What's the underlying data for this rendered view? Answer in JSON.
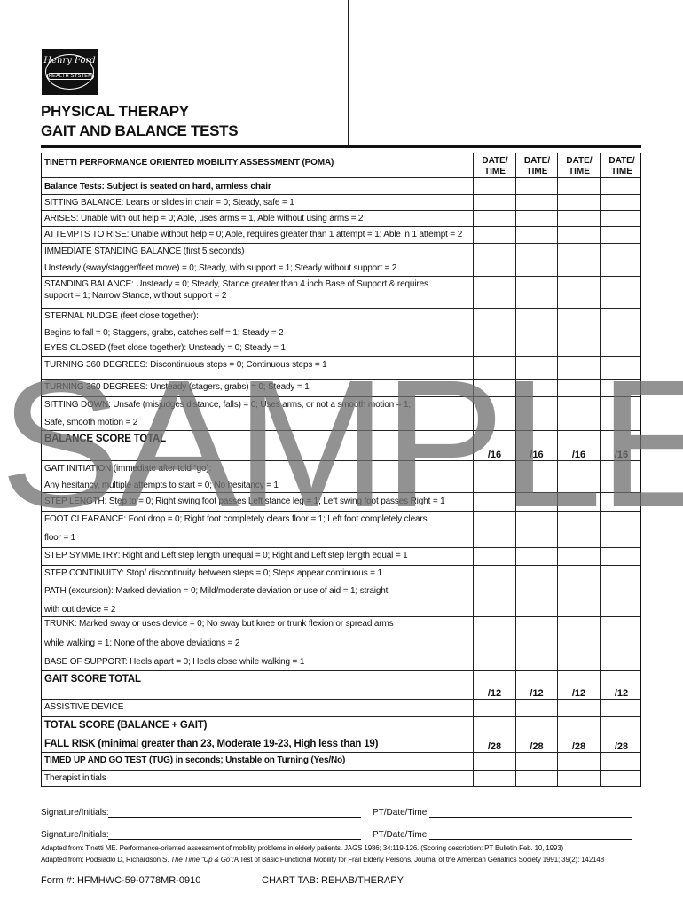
{
  "logo": {
    "script_text": "Henry Ford",
    "subtext": "HEALTH SYSTEM"
  },
  "title_line1": "PHYSICAL THERAPY",
  "title_line2": "GAIT AND BALANCE TESTS",
  "table": {
    "heading": "TINETTI PERFORMANCE ORIENTED MOBILITY ASSESSMENT (POMA)",
    "date_columns": [
      {
        "line1": "DATE/",
        "line2": "TIME"
      },
      {
        "line1": "DATE/",
        "line2": "TIME"
      },
      {
        "line1": "DATE/",
        "line2": "TIME"
      },
      {
        "line1": "DATE/",
        "line2": "TIME"
      }
    ],
    "rows": [
      {
        "style": "b",
        "lines": [
          "Balance Tests: Subject is seated on hard, armless chair"
        ]
      },
      {
        "lines": [
          "SITTING BALANCE: Leans or slides in chair = 0; Steady, safe = 1"
        ]
      },
      {
        "lines": [
          "ARISES: Unable with out help = 0; Able, uses arms = 1, Able without using arms = 2"
        ]
      },
      {
        "lines": [
          "ATTEMPTS TO RISE: Unable without help = 0; Able, requires greater than 1 attempt = 1; Able in 1 attempt = 2"
        ]
      },
      {
        "lines": [
          "IMMEDIATE STANDING BALANCE (first 5 seconds)",
          "Unsteady (sway/stagger/feet move) = 0; Steady, with support = 1; Steady without support = 2"
        ]
      },
      {
        "lines": [
          "STANDING BALANCE: Unsteady = 0; Steady, Stance greater than 4 inch Base of Support & requires",
          "support = 1; Narrow Stance, without support = 2"
        ]
      },
      {
        "lines": [
          "STERNAL NUDGE (feet close together):",
          "Begins to fall = 0; Staggers, grabs, catches self = 1; Steady = 2"
        ]
      },
      {
        "lines": [
          "EYES CLOSED (feet close together): Unsteady = 0; Steady = 1"
        ]
      },
      {
        "lines": [
          "TURNING 360 DEGREES: Discontinuous steps = 0; Continuous steps = 1"
        ]
      },
      {
        "lines": [
          "TURNING 360 DEGREES: Unsteady (stagers, grabs) = 0; Steady = 1"
        ]
      },
      {
        "lines": [
          "SITTING DOWN: Unsafe (misjudges distance, falls) = 0; Uses arms, or not a smooth motion = 1;",
          "Safe, smooth motion = 2"
        ]
      },
      {
        "style": "big",
        "lines": [
          "BALANCE SCORE TOTAL"
        ],
        "score": "/16"
      },
      {
        "lines": [
          "GAIT INITIATION (immediate after told “go):",
          "Any hesitancy, multiple attempts to start = 0; No hesitancy = 1"
        ]
      },
      {
        "lines": [
          "STEP LENGTH: Step to = 0; Right swing foot passes Left stance leg = 1; Left swing foot passes Right = 1"
        ]
      },
      {
        "lines": [
          "FOOT CLEARANCE: Foot drop = 0; Right foot completely clears floor = 1; Left foot completely clears",
          "floor = 1"
        ]
      },
      {
        "lines": [
          "STEP SYMMETRY: Right and Left step length unequal = 0; Right and Left step length equal = 1"
        ]
      },
      {
        "lines": [
          "STEP CONTINUITY: Stop/ discontinuity between steps = 0; Steps appear continuous = 1"
        ]
      },
      {
        "lines": [
          "PATH (excursion): Marked deviation = 0; Mild/moderate deviation or use of aid = 1; straight",
          "with out device = 2"
        ]
      },
      {
        "lines": [
          "TRUNK: Marked sway or uses device = 0; No sway but knee or trunk flexion or spread arms",
          "while walking = 1; None of the above deviations = 2"
        ]
      },
      {
        "lines": [
          "BASE OF SUPPORT: Heels apart = 0; Heels close while walking = 1"
        ]
      },
      {
        "style": "big",
        "lines": [
          "GAIT SCORE TOTAL"
        ],
        "score": "/12"
      },
      {
        "lines": [
          "ASSISTIVE DEVICE"
        ]
      },
      {
        "style": "big",
        "lines": [
          "TOTAL SCORE (BALANCE + GAIT)",
          "FALL RISK (minimal greater than 23, Moderate 19-23, High less than 19)"
        ],
        "score": "/28"
      },
      {
        "style": "b",
        "lines": [
          "TIMED UP AND GO TEST (TUG) in seconds; Unstable on Turning (Yes/No)"
        ]
      },
      {
        "lines": [
          "Therapist initials"
        ]
      }
    ]
  },
  "watermark": "SAMPLE",
  "signatures": [
    {
      "label": "Signature/Initials:",
      "pt_label": "PT/Date/Time"
    },
    {
      "label": "Signature/Initials:",
      "pt_label": "PT/Date/Time"
    }
  ],
  "references": {
    "ref1": "Adapted from: Tinetti ME. Performance-oriented assessment of mobility problems in elderly patients. JAGS 1986; 34:119-126. (Scoring description: PT Bulletin Feb. 10, 1993)",
    "ref2_prefix": "Adapted from: Podsiadlo D, Richardson S. ",
    "ref2_italic": "The Time “Up & Go”:",
    "ref2_suffix": "A Test of Basic Functional Mobility for Frail Elderly Persons. Journal of the American Geriatrics Society 1991; 39(2): 142148"
  },
  "footer": {
    "form_number": "Form #: HFMHWC-59-0778MR-0910",
    "chart_tab": "CHART TAB: REHAB/THERAPY"
  }
}
